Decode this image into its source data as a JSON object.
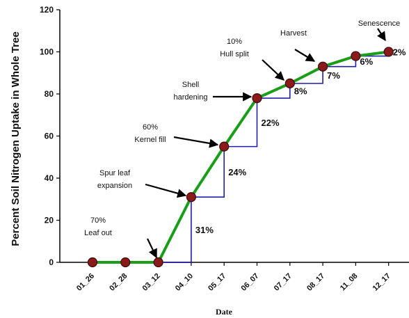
{
  "chart_data": {
    "type": "line",
    "xlabel": "Date",
    "ylabel": "Percent Soil Nitrogen Uptake in Whole Tree",
    "ylim": [
      0,
      120
    ],
    "yticks": [
      0,
      20,
      40,
      60,
      80,
      100,
      120
    ],
    "categories": [
      "01_26",
      "02_28",
      "03_12",
      "04_10",
      "05_17",
      "06_07",
      "07_17",
      "08_17",
      "11_08",
      "12_17"
    ],
    "values": [
      0,
      0,
      0,
      31,
      55,
      78,
      85,
      93,
      98,
      100
    ],
    "line_color": "#1a9e1a",
    "marker_color": "#8b1a1a",
    "step_color": "#1f1fa8",
    "increments": [
      {
        "from": 2,
        "to": 3,
        "label": "31%"
      },
      {
        "from": 3,
        "to": 4,
        "label": "24%"
      },
      {
        "from": 4,
        "to": 5,
        "label": "22%"
      },
      {
        "from": 5,
        "to": 6,
        "label": "8%"
      },
      {
        "from": 6,
        "to": 7,
        "label": "7%"
      },
      {
        "from": 7,
        "to": 8,
        "label": "6%"
      },
      {
        "from": 8,
        "to": 9,
        "label": "2%"
      }
    ],
    "annotations": [
      {
        "lines": [
          "70%",
          "Leaf out"
        ],
        "point": 2
      },
      {
        "lines": [
          "Spur leaf",
          "expansion"
        ],
        "point": 3
      },
      {
        "lines": [
          "60%",
          "Kernel fill"
        ],
        "point": 4
      },
      {
        "lines": [
          "Shell",
          "hardening"
        ],
        "point": 5
      },
      {
        "lines": [
          "10%",
          "Hull split"
        ],
        "point": 6
      },
      {
        "lines": [
          "Harvest"
        ],
        "point": 7
      },
      {
        "lines": [
          "Senescence"
        ],
        "point": 9
      }
    ]
  }
}
